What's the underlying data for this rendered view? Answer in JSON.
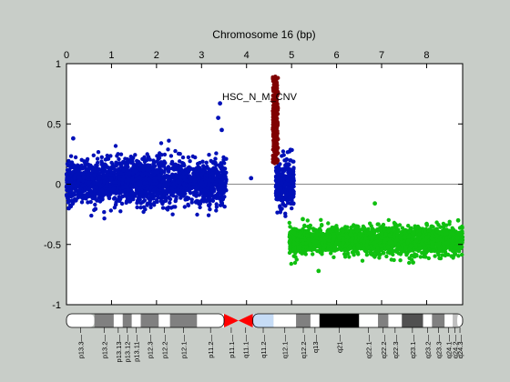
{
  "colors": {
    "background": "#c8cdc8",
    "plot_bg": "#ffffff",
    "series_blue": "#0010b8",
    "series_red": "#800000",
    "series_green": "#10c010",
    "centromere": "#ff0000",
    "heterochromatin": "#c6dcf6"
  },
  "chart_data": {
    "type": "scatter",
    "title": "Chromosome 16 (bp)",
    "annotation": "HSC_N_M_CNV",
    "x_axis": {
      "position": "top",
      "range": [
        0,
        8.8
      ],
      "ticks": [
        "0",
        "1",
        "2",
        "3",
        "4",
        "5",
        "6",
        "7",
        "8"
      ]
    },
    "y_axis": {
      "range": [
        -1,
        1
      ],
      "ticks": [
        "-1",
        "-0.5",
        "0",
        "0.5",
        "1"
      ]
    },
    "zero_line": true,
    "grid": false,
    "series": [
      {
        "color": "blue",
        "segments": [
          {
            "x_range": [
              0.0,
              3.55
            ],
            "mean": 0.02,
            "spread": 0.09,
            "n": 2200
          },
          {
            "x_range": [
              4.65,
              5.05
            ],
            "mean": 0.01,
            "spread": 0.1,
            "n": 320
          }
        ],
        "outliers": [
          [
            3.41,
            0.67
          ],
          [
            3.37,
            0.55
          ],
          [
            0.15,
            0.38
          ],
          [
            4.1,
            0.05
          ],
          [
            3.45,
            0.45
          ],
          [
            0.05,
            -0.2
          ]
        ]
      },
      {
        "color": "red",
        "segments": [
          {
            "x_range": [
              4.58,
              4.7
            ],
            "y_range": [
              0.17,
              0.9
            ],
            "n": 260
          }
        ]
      },
      {
        "color": "green",
        "segments": [
          {
            "x_range": [
              4.95,
              8.8
            ],
            "mean": -0.47,
            "spread": 0.055,
            "n": 2200
          }
        ],
        "outliers": [
          [
            6.85,
            -0.16
          ],
          [
            5.6,
            -0.72
          ],
          [
            8.0,
            -0.33
          ],
          [
            5.25,
            -0.29
          ],
          [
            7.7,
            -0.65
          ],
          [
            8.7,
            -0.3
          ]
        ]
      }
    ],
    "ideogram": {
      "bands": [
        {
          "name": "p13.3",
          "start": 0.0,
          "end": 0.62,
          "stain": "gneg"
        },
        {
          "name": "p13.2",
          "start": 0.62,
          "end": 1.05,
          "stain": "gpos50"
        },
        {
          "name": "p13.13",
          "start": 1.05,
          "end": 1.25,
          "stain": "gneg"
        },
        {
          "name": "p13.12",
          "start": 1.25,
          "end": 1.45,
          "stain": "gpos50"
        },
        {
          "name": "p13.11",
          "start": 1.45,
          "end": 1.65,
          "stain": "gneg"
        },
        {
          "name": "p12.3",
          "start": 1.65,
          "end": 2.05,
          "stain": "gpos50"
        },
        {
          "name": "p12.2",
          "start": 2.05,
          "end": 2.3,
          "stain": "gneg"
        },
        {
          "name": "p12.1",
          "start": 2.3,
          "end": 2.9,
          "stain": "gpos50"
        },
        {
          "name": "p11.2",
          "start": 2.9,
          "end": 3.5,
          "stain": "gneg"
        },
        {
          "name": "p11.1",
          "start": 3.5,
          "end": 3.82,
          "stain": "acen"
        },
        {
          "name": "q11.1",
          "start": 3.82,
          "end": 4.14,
          "stain": "acen"
        },
        {
          "name": "q11.2",
          "start": 4.14,
          "end": 4.6,
          "stain": "gvar"
        },
        {
          "name": "q12.1",
          "start": 4.6,
          "end": 5.1,
          "stain": "gneg"
        },
        {
          "name": "q12.2",
          "start": 5.1,
          "end": 5.42,
          "stain": "gpos50"
        },
        {
          "name": "q13",
          "start": 5.42,
          "end": 5.62,
          "stain": "gneg"
        },
        {
          "name": "q21",
          "start": 5.62,
          "end": 6.5,
          "stain": "gpos100"
        },
        {
          "name": "q22.1",
          "start": 6.5,
          "end": 6.92,
          "stain": "gneg"
        },
        {
          "name": "q22.2",
          "start": 6.92,
          "end": 7.15,
          "stain": "gpos50"
        },
        {
          "name": "q22.3",
          "start": 7.15,
          "end": 7.45,
          "stain": "gneg"
        },
        {
          "name": "q23.1",
          "start": 7.45,
          "end": 7.92,
          "stain": "gpos75"
        },
        {
          "name": "q23.2",
          "start": 7.92,
          "end": 8.12,
          "stain": "gneg"
        },
        {
          "name": "q23.3",
          "start": 8.12,
          "end": 8.4,
          "stain": "gpos50"
        },
        {
          "name": "q24.1",
          "start": 8.4,
          "end": 8.58,
          "stain": "gneg"
        },
        {
          "name": "q24.2",
          "start": 8.58,
          "end": 8.68,
          "stain": "gpos25"
        },
        {
          "name": "q24.3",
          "start": 8.68,
          "end": 8.8,
          "stain": "gneg"
        }
      ]
    }
  }
}
